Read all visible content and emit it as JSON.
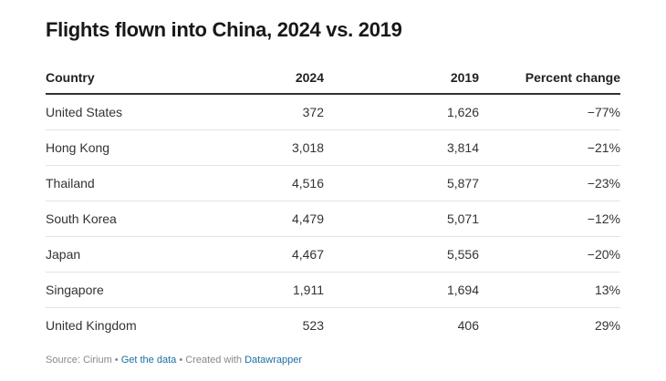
{
  "title": "Flights flown into China, 2024 vs. 2019",
  "chart_data": {
    "type": "table",
    "title": "Flights flown into China, 2024 vs. 2019",
    "columns": [
      "Country",
      "2024",
      "2019",
      "Percent change"
    ],
    "rows": [
      {
        "country": "United States",
        "v2024": "372",
        "v2019": "1,626",
        "change": "−77%"
      },
      {
        "country": "Hong Kong",
        "v2024": "3,018",
        "v2019": "3,814",
        "change": "−21%"
      },
      {
        "country": "Thailand",
        "v2024": "4,516",
        "v2019": "5,877",
        "change": "−23%"
      },
      {
        "country": "South Korea",
        "v2024": "4,479",
        "v2019": "5,071",
        "change": "−12%"
      },
      {
        "country": "Japan",
        "v2024": "4,467",
        "v2019": "5,556",
        "change": "−20%"
      },
      {
        "country": "Singapore",
        "v2024": "1,911",
        "v2019": "1,694",
        "change": "13%"
      },
      {
        "country": "United Kingdom",
        "v2024": "523",
        "v2019": "406",
        "change": "29%"
      }
    ]
  },
  "footer": {
    "source": "Source: Cirium",
    "separator": " • ",
    "get_data": "Get the data",
    "created_with": "Created with",
    "tool": "Datawrapper"
  }
}
